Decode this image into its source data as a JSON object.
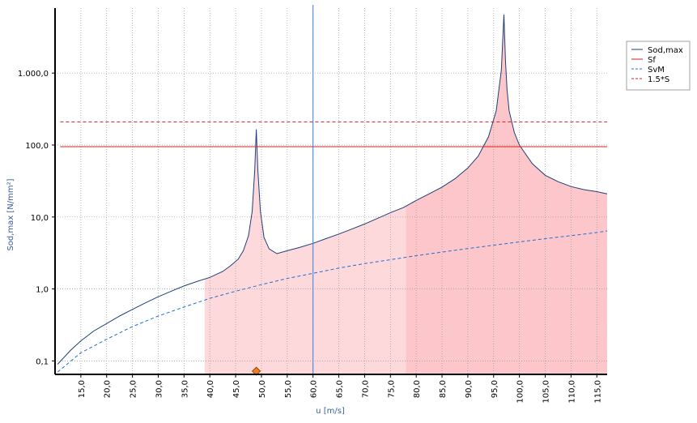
{
  "chart_data": {
    "type": "line",
    "xlabel": "u [m/s]",
    "ylabel": "Sod,max [N/mm²]",
    "xlim": [
      10.0,
      117.0
    ],
    "ylim": [
      0.065,
      8000
    ],
    "yscale": "log",
    "grid": true,
    "legend_position": "right",
    "x_ticks": [
      "15,0",
      "20,0",
      "25,0",
      "30,0",
      "35,0",
      "40,0",
      "45,0",
      "50,0",
      "55,0",
      "60,0",
      "65,0",
      "70,0",
      "75,0",
      "80,0",
      "85,0",
      "90,0",
      "95,0",
      "100,0",
      "105,0",
      "110,0",
      "115,0"
    ],
    "x_tick_values": [
      15,
      20,
      25,
      30,
      35,
      40,
      45,
      50,
      55,
      60,
      65,
      70,
      75,
      80,
      85,
      90,
      95,
      100,
      105,
      110,
      115
    ],
    "y_ticks": [
      "0,1",
      "1,0",
      "10,0",
      "100,0",
      "1.000,0"
    ],
    "y_tick_values": [
      0.1,
      1,
      10,
      100,
      1000
    ],
    "vertical_marker_x": 60.0,
    "point_marker": {
      "x": 49.0,
      "y": 0.072
    },
    "shaded_regions": [
      {
        "x_from": 39.0,
        "x_to": 78.0,
        "color": "#fdd9dc"
      },
      {
        "x_from": 78.0,
        "x_to": 117.0,
        "color": "#fcc6ca"
      }
    ],
    "series": [
      {
        "name": "Sod,max",
        "color": "#1f3f7a",
        "style": "solid",
        "x": [
          10.5,
          13,
          15,
          17.5,
          20,
          22.5,
          25,
          27.5,
          30,
          32.5,
          35,
          37.5,
          40,
          42.5,
          44,
          45.5,
          46.5,
          47.5,
          48.2,
          48.7,
          49.0,
          49.3,
          49.8,
          50.5,
          51.5,
          53,
          55,
          57.5,
          60,
          62.5,
          65,
          67.5,
          70,
          72.5,
          75,
          77.5,
          80,
          82.5,
          85,
          87.5,
          90,
          92,
          94,
          95.5,
          96.5,
          97.0,
          97.3,
          97.6,
          98,
          99,
          100,
          102.5,
          105,
          107.5,
          110,
          112.5,
          115,
          117
        ],
        "y": [
          0.09,
          0.14,
          0.19,
          0.26,
          0.33,
          0.42,
          0.52,
          0.64,
          0.78,
          0.93,
          1.1,
          1.27,
          1.45,
          1.75,
          2.1,
          2.6,
          3.4,
          5.5,
          12,
          45,
          165,
          45,
          12,
          5.2,
          3.6,
          3.1,
          3.4,
          3.8,
          4.3,
          5.0,
          5.8,
          6.8,
          8.0,
          9.6,
          11.5,
          13.5,
          17,
          21,
          26,
          34,
          48,
          70,
          130,
          300,
          1100,
          6500,
          1500,
          600,
          300,
          150,
          100,
          55,
          38,
          31,
          26.5,
          24,
          22.5,
          21
        ]
      },
      {
        "name": "Sf",
        "color": "#d42020",
        "style": "solid",
        "x": [
          11,
          117
        ],
        "y": [
          95,
          95
        ]
      },
      {
        "name": "SvM",
        "color": "#1f6fd4",
        "style": "dashed",
        "x": [
          10.5,
          15,
          20,
          25,
          30,
          35,
          40,
          45,
          50,
          55,
          60,
          65,
          70,
          75,
          80,
          85,
          90,
          95,
          100,
          105,
          110,
          115,
          117
        ],
        "y": [
          0.07,
          0.13,
          0.2,
          0.3,
          0.42,
          0.56,
          0.74,
          0.93,
          1.15,
          1.4,
          1.65,
          1.95,
          2.25,
          2.55,
          2.9,
          3.25,
          3.65,
          4.05,
          4.5,
          5.0,
          5.5,
          6.1,
          6.4
        ]
      },
      {
        "name": "1.5*S",
        "color": "#d42020",
        "style": "dashed",
        "x": [
          11,
          117
        ],
        "y": [
          210,
          210
        ]
      }
    ]
  }
}
